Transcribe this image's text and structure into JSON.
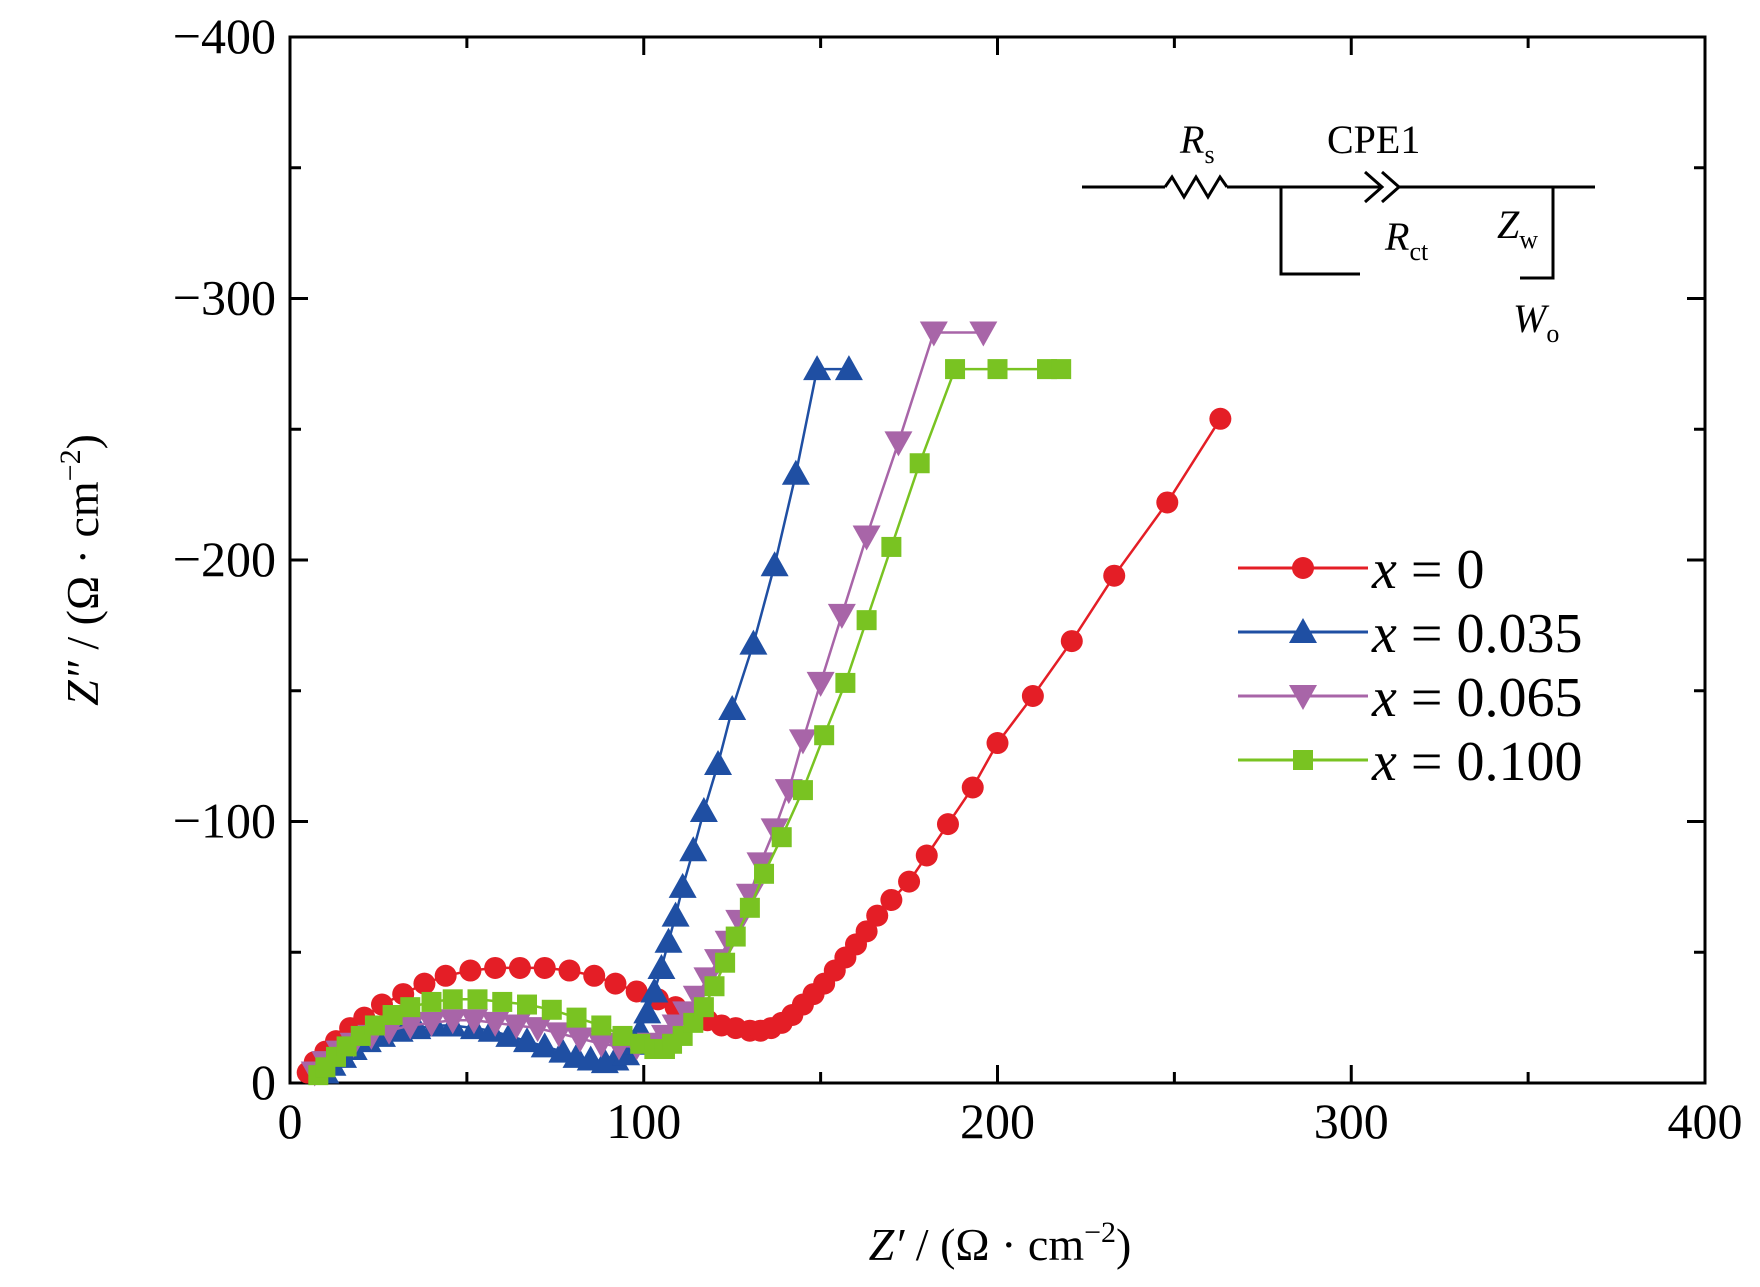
{
  "chart_data": {
    "type": "scatter",
    "xlabel": {
      "sym": "Z′",
      "unit": " / (Ω · cm",
      "exp": "−2",
      "close": ")"
    },
    "ylabel": {
      "sym": "Z″",
      "unit": " / (Ω · cm",
      "exp": "−2",
      "close": ")"
    },
    "xlim": [
      0,
      400
    ],
    "ylim": [
      0,
      -400
    ],
    "x_ticks": [
      {
        "value": 0,
        "label": "0"
      },
      {
        "value": 100,
        "label": "100"
      },
      {
        "value": 200,
        "label": "200"
      },
      {
        "value": 300,
        "label": "300"
      },
      {
        "value": 400,
        "label": "400"
      }
    ],
    "y_ticks": [
      {
        "value": 0,
        "label": "0"
      },
      {
        "value": -100,
        "label": "−100"
      },
      {
        "value": -200,
        "label": "−200"
      },
      {
        "value": -300,
        "label": "−300"
      },
      {
        "value": -400,
        "label": "−400"
      }
    ],
    "grid": false,
    "legend_position": "right",
    "series": [
      {
        "name": "x = 0",
        "var": "x",
        "eq": " = 0",
        "color": "#e41e26",
        "marker": "circle",
        "x": [
          5,
          7,
          10,
          13,
          17,
          21,
          26,
          32,
          38,
          44,
          51,
          58,
          65,
          72,
          79,
          86,
          92,
          98,
          104,
          109,
          114,
          118,
          122,
          126,
          130,
          133,
          136,
          139,
          142,
          145,
          148,
          151,
          154,
          157,
          160,
          163,
          166,
          170,
          175,
          180,
          186,
          193,
          200,
          210,
          221,
          233,
          248,
          263
        ],
        "y": [
          -4,
          -8,
          -12,
          -16,
          -21,
          -25,
          -30,
          -34,
          -38,
          -41,
          -43,
          -44,
          -44,
          -44,
          -43,
          -41,
          -38,
          -35,
          -32,
          -29,
          -26,
          -24,
          -22,
          -21,
          -20,
          -20,
          -21,
          -23,
          -26,
          -30,
          -34,
          -38,
          -43,
          -48,
          -53,
          -58,
          -64,
          -70,
          -77,
          -87,
          -99,
          -113,
          -130,
          -148,
          -169,
          -194,
          -222,
          -254
        ]
      },
      {
        "name": "x = 0.035",
        "var": "x",
        "eq": " = 0.035",
        "color": "#1f4fa3",
        "marker": "triangle-up",
        "x": [
          10,
          12,
          15,
          18,
          22,
          26,
          31,
          36,
          41,
          46,
          52,
          57,
          62,
          67,
          72,
          77,
          81,
          85,
          89,
          92,
          95,
          97,
          99,
          101,
          103,
          105,
          107,
          109,
          111,
          114,
          117,
          121,
          125,
          131,
          137,
          143,
          149,
          158
        ],
        "y": [
          -4,
          -7,
          -10,
          -13,
          -16,
          -18,
          -20,
          -21,
          -22,
          -22,
          -21,
          -20,
          -18,
          -16,
          -14,
          -12,
          -10,
          -9,
          -8,
          -9,
          -11,
          -15,
          -20,
          -27,
          -35,
          -44,
          -54,
          -64,
          -75,
          -89,
          -104,
          -122,
          -143,
          -168,
          -198,
          -233,
          -273,
          -273
        ]
      },
      {
        "name": "x = 0.065",
        "var": "x",
        "eq": " = 0.065",
        "color": "#a865a8",
        "marker": "triangle-down",
        "x": [
          7,
          10,
          14,
          18,
          23,
          28,
          34,
          40,
          46,
          52,
          58,
          64,
          70,
          76,
          82,
          88,
          93,
          98,
          102,
          106,
          109,
          112,
          115,
          118,
          121,
          124,
          127,
          130,
          133,
          137,
          141,
          145,
          150,
          156,
          163,
          172,
          182,
          196
        ],
        "y": [
          -4,
          -8,
          -12,
          -15,
          -18,
          -20,
          -22,
          -23,
          -24,
          -24,
          -23,
          -22,
          -21,
          -19,
          -17,
          -15,
          -14,
          -14,
          -15,
          -18,
          -22,
          -27,
          -33,
          -40,
          -47,
          -54,
          -62,
          -72,
          -84,
          -97,
          -112,
          -131,
          -153,
          -179,
          -209,
          -245,
          -287,
          -287
        ]
      },
      {
        "name": "x = 0.100",
        "var": "x",
        "eq": " = 0.100",
        "color": "#79c322",
        "marker": "square",
        "x": [
          8,
          10,
          13,
          16,
          20,
          24,
          29,
          34,
          40,
          46,
          53,
          60,
          67,
          74,
          81,
          88,
          94,
          99,
          103,
          106,
          108,
          111,
          114,
          117,
          120,
          123,
          126,
          130,
          134,
          139,
          145,
          151,
          157,
          163,
          170,
          178,
          188,
          200,
          214,
          218
        ],
        "y": [
          -3,
          -6,
          -10,
          -14,
          -18,
          -22,
          -26,
          -29,
          -31,
          -32,
          -32,
          -31,
          -30,
          -28,
          -25,
          -22,
          -18,
          -15,
          -13,
          -13,
          -15,
          -18,
          -23,
          -29,
          -37,
          -46,
          -56,
          -67,
          -80,
          -94,
          -112,
          -133,
          -153,
          -177,
          -205,
          -237,
          -273,
          -273,
          -273,
          -273
        ]
      }
    ]
  },
  "circuit": {
    "rs": {
      "main": "R",
      "sub": "s"
    },
    "cpe": "CPE1",
    "rct": {
      "main": "R",
      "sub": "ct"
    },
    "zw": {
      "main": "Z",
      "sub": "w"
    },
    "wo": {
      "main": "W",
      "sub": "o"
    }
  }
}
